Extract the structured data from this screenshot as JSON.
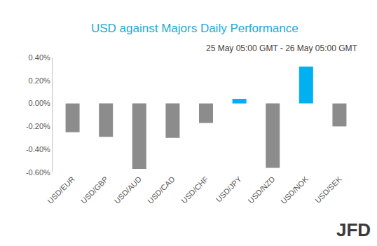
{
  "chart_data": {
    "type": "bar",
    "title": "USD against Majors Daily Performance",
    "subtitle": "25 May 05:00 GMT - 26 May 05:00 GMT",
    "categories": [
      "USD/EUR",
      "USD/GBP",
      "USD/AUD",
      "USD/CAD",
      "USD/CHF",
      "USD/JPY",
      "USD/NZD",
      "USD/NOK",
      "USD/SEK"
    ],
    "values": [
      -0.25,
      -0.29,
      -0.57,
      -0.3,
      -0.17,
      0.04,
      -0.56,
      0.32,
      -0.2
    ],
    "colors": [
      "#8c8c8c",
      "#8c8c8c",
      "#8c8c8c",
      "#8c8c8c",
      "#8c8c8c",
      "#00b0f0",
      "#8c8c8c",
      "#00b0f0",
      "#8c8c8c"
    ],
    "ylim": [
      -0.6,
      0.4
    ],
    "yticks": [
      {
        "value": -0.6,
        "label": "-0.60%"
      },
      {
        "value": -0.4,
        "label": "-0.40%"
      },
      {
        "value": -0.2,
        "label": "-0.20%"
      },
      {
        "value": 0,
        "label": "0.00%"
      },
      {
        "value": 0.2,
        "label": "0.20%"
      },
      {
        "value": 0.4,
        "label": "0.40%"
      }
    ],
    "grid": false,
    "annotations": [
      {
        "text": "JFD"
      }
    ]
  }
}
